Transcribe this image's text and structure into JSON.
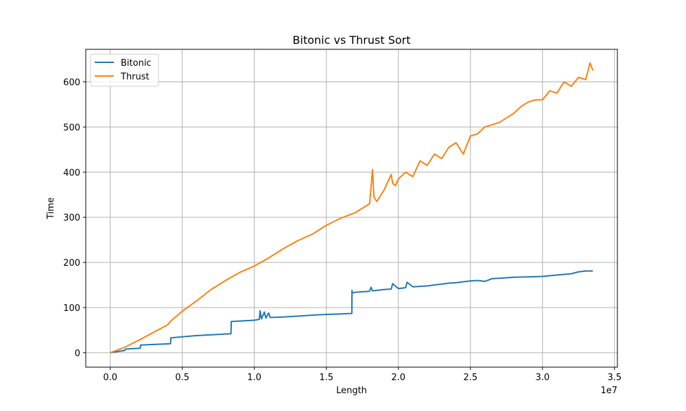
{
  "chart_data": {
    "type": "line",
    "title": "Bitonic vs Thrust Sort",
    "xlabel": "Length",
    "ylabel": "Time",
    "x_offset_label": "1e7",
    "xlim": [
      -1700000,
      35200000
    ],
    "ylim": [
      -32,
      672
    ],
    "x_ticks": [
      0,
      5000000,
      10000000,
      15000000,
      20000000,
      25000000,
      30000000,
      35000000
    ],
    "x_tick_labels": [
      "0.0",
      "0.5",
      "1.0",
      "1.5",
      "2.0",
      "2.5",
      "3.0",
      "3.5"
    ],
    "y_ticks": [
      0,
      100,
      200,
      300,
      400,
      500,
      600
    ],
    "y_tick_labels": [
      "0",
      "100",
      "200",
      "300",
      "400",
      "500",
      "600"
    ],
    "grid": true,
    "legend_position": "upper-left",
    "series": [
      {
        "name": "Bitonic",
        "color": "#1f77b4",
        "x": [
          0,
          1000000,
          1050000,
          2090000,
          2100000,
          4190000,
          4200000,
          6000000,
          8380000,
          8400000,
          10000000,
          10350000,
          10400000,
          10500000,
          10700000,
          10800000,
          11000000,
          11100000,
          12000000,
          13000000,
          14500000,
          16000000,
          16770000,
          16780000,
          16800000,
          17000000,
          18000000,
          18100000,
          18200000,
          19000000,
          19500000,
          19600000,
          20000000,
          20500000,
          20600000,
          21000000,
          22000000,
          22500000,
          23000000,
          23500000,
          24000000,
          24500000,
          25000000,
          25500000,
          26000000,
          26500000,
          27000000,
          27500000,
          28000000,
          29000000,
          30000000,
          31000000,
          32000000,
          32500000,
          33000000,
          33500000
        ],
        "values": [
          0,
          5,
          8,
          10,
          17,
          20,
          33,
          38,
          42,
          69,
          72,
          74,
          93,
          75,
          90,
          77,
          88,
          78,
          79,
          81,
          84,
          86,
          87,
          138,
          132,
          134,
          136,
          145,
          137,
          140,
          141,
          153,
          142,
          144,
          156,
          146,
          148,
          150,
          152,
          154,
          155,
          157,
          159,
          160,
          158,
          164,
          165,
          166,
          167,
          168,
          169,
          172,
          175,
          179,
          181,
          181
        ]
      },
      {
        "name": "Thrust",
        "color": "#ff7f0e",
        "x": [
          0,
          1000000,
          2000000,
          3000000,
          4000000,
          4200000,
          5000000,
          6000000,
          7000000,
          8000000,
          9000000,
          10000000,
          11000000,
          12000000,
          13000000,
          14000000,
          15000000,
          16000000,
          17000000,
          17500000,
          18000000,
          18200000,
          18300000,
          18500000,
          19000000,
          19500000,
          19600000,
          19800000,
          20000000,
          20500000,
          21000000,
          21500000,
          22000000,
          22500000,
          23000000,
          23500000,
          24000000,
          24500000,
          25000000,
          25500000,
          26000000,
          26500000,
          27000000,
          27500000,
          28000000,
          28500000,
          29000000,
          29500000,
          30000000,
          30500000,
          31000000,
          31500000,
          32000000,
          32500000,
          33000000,
          33300000,
          33500000
        ],
        "values": [
          0,
          12,
          28,
          45,
          62,
          70,
          92,
          115,
          140,
          160,
          178,
          192,
          210,
          230,
          248,
          262,
          282,
          298,
          310,
          320,
          330,
          405,
          345,
          335,
          360,
          395,
          375,
          370,
          385,
          400,
          390,
          425,
          415,
          440,
          430,
          455,
          465,
          440,
          480,
          485,
          500,
          505,
          510,
          520,
          530,
          545,
          555,
          560,
          560,
          580,
          575,
          600,
          590,
          610,
          605,
          642,
          625
        ]
      }
    ]
  }
}
